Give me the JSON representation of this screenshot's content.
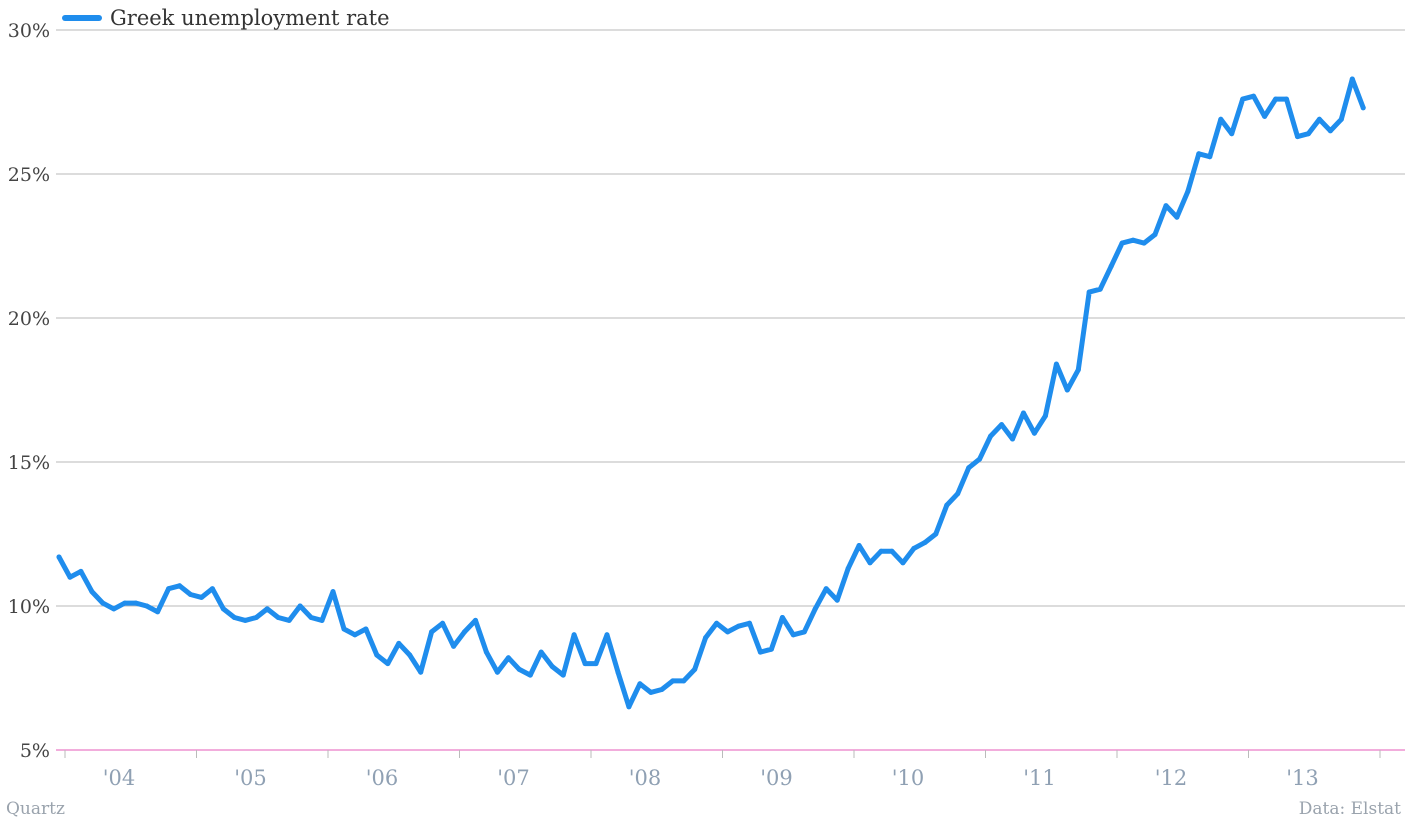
{
  "chart_data": {
    "type": "line",
    "x_start": "2003-07",
    "x_frequency": "monthly",
    "ylim": [
      5,
      30
    ],
    "y_ticks": [
      "5%",
      "10%",
      "15%",
      "20%",
      "25%",
      "30%"
    ],
    "x_tick_labels": [
      "'04",
      "'05",
      "'06",
      "'07",
      "'08",
      "'09",
      "'10",
      "'11",
      "'12",
      "'13"
    ],
    "grid": true,
    "legend_position": "top-left",
    "series": [
      {
        "name": "Greek unemployment rate",
        "color": "#1f8ded",
        "values": [
          11.7,
          11.0,
          11.2,
          10.5,
          10.1,
          9.9,
          10.1,
          10.1,
          10.0,
          9.8,
          10.6,
          10.7,
          10.4,
          10.3,
          10.6,
          9.9,
          9.6,
          9.5,
          9.6,
          9.9,
          9.6,
          9.5,
          10.0,
          9.6,
          9.5,
          10.5,
          9.2,
          9.0,
          9.2,
          8.3,
          8.0,
          8.7,
          8.3,
          7.7,
          9.1,
          9.4,
          8.6,
          9.1,
          9.5,
          8.4,
          7.7,
          8.2,
          7.8,
          7.6,
          8.4,
          7.9,
          7.6,
          9.0,
          8.0,
          8.0,
          9.0,
          7.7,
          6.5,
          7.3,
          7.0,
          7.1,
          7.4,
          7.4,
          7.8,
          8.9,
          9.4,
          9.1,
          9.3,
          9.4,
          8.4,
          8.5,
          9.6,
          9.0,
          9.1,
          9.9,
          10.6,
          10.2,
          11.3,
          12.1,
          11.5,
          11.9,
          11.9,
          11.5,
          12.0,
          12.2,
          12.5,
          13.5,
          13.9,
          14.8,
          15.1,
          15.9,
          16.3,
          15.8,
          16.7,
          16.0,
          16.6,
          18.4,
          17.5,
          18.2,
          20.9,
          21.0,
          21.8,
          22.6,
          22.7,
          22.6,
          22.9,
          23.9,
          23.5,
          24.4,
          25.7,
          25.6,
          26.9,
          26.4,
          27.6,
          27.7,
          27.0,
          27.6,
          27.6,
          26.3,
          26.4,
          26.9,
          26.5,
          26.9,
          28.3,
          27.3
        ]
      }
    ]
  },
  "legend": {
    "label": "Greek unemployment rate"
  },
  "footer": {
    "source_left": "Quartz",
    "source_right": "Data: Elstat"
  }
}
